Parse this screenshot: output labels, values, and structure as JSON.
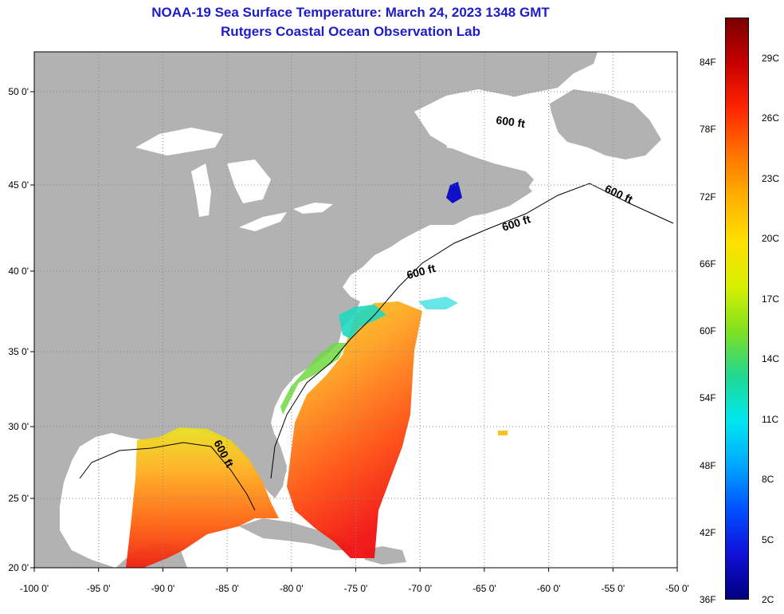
{
  "header": {
    "title": "NOAA-19 Sea Surface Temperature:  March 24, 2023 1348 GMT",
    "subtitle": "Rutgers Coastal Ocean Observation Lab"
  },
  "map": {
    "x_ticks": [
      "-100 0'",
      "-95 0'",
      "-90 0'",
      "-85 0'",
      "-80 0'",
      "-75 0'",
      "-70 0'",
      "-65 0'",
      "-60 0'",
      "-55 0'",
      "-50 0'"
    ],
    "y_ticks": [
      "50 0'",
      "45 0'",
      "40 0'",
      "35 0'",
      "30 0'",
      "25 0'",
      "20 0'"
    ],
    "contour_label": "600 ft",
    "colors": {
      "land": "#b2b2b2",
      "ocean": "#ffffff",
      "grid": "#888888"
    }
  },
  "colorbar": {
    "fahrenheit": [
      "84F",
      "78F",
      "72F",
      "66F",
      "60F",
      "54F",
      "48F",
      "42F",
      "36F"
    ],
    "celsius": [
      "29C",
      "26C",
      "23C",
      "20C",
      "17C",
      "14C",
      "11C",
      "8C",
      "5C",
      "2C"
    ],
    "stops": [
      "#7a0000",
      "#c80000",
      "#ff2400",
      "#ff7000",
      "#ffb000",
      "#ffe000",
      "#d8f000",
      "#80e020",
      "#20d890",
      "#00e8f0",
      "#00a8ff",
      "#0050ff",
      "#1010d8",
      "#000080"
    ]
  }
}
